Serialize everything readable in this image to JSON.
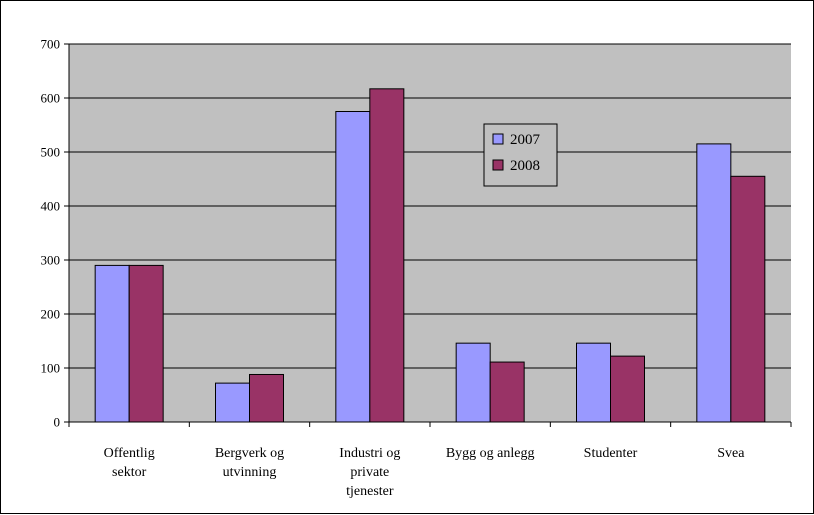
{
  "colors": {
    "plot_background": "#c0c0c0",
    "series_2007": "#9999ff",
    "series_2008": "#993366",
    "gridline": "#000000"
  },
  "chart_data": {
    "type": "bar",
    "categories": [
      [
        "Offentlig",
        "sektor"
      ],
      [
        "Bergverk og",
        "utvinning"
      ],
      [
        "Industri og",
        "private",
        "tjenester"
      ],
      [
        "Bygg og anlegg"
      ],
      [
        "Studenter"
      ],
      [
        "Svea"
      ]
    ],
    "series": [
      {
        "name": "2007",
        "values": [
          290,
          72,
          575,
          146,
          146,
          515
        ]
      },
      {
        "name": "2008",
        "values": [
          290,
          88,
          617,
          111,
          122,
          455
        ]
      }
    ],
    "title": "",
    "xlabel": "",
    "ylabel": "",
    "ylim": [
      0,
      700
    ],
    "yticks": [
      0,
      100,
      200,
      300,
      400,
      500,
      600,
      700
    ],
    "grid": true,
    "legend_position": "center-right"
  }
}
